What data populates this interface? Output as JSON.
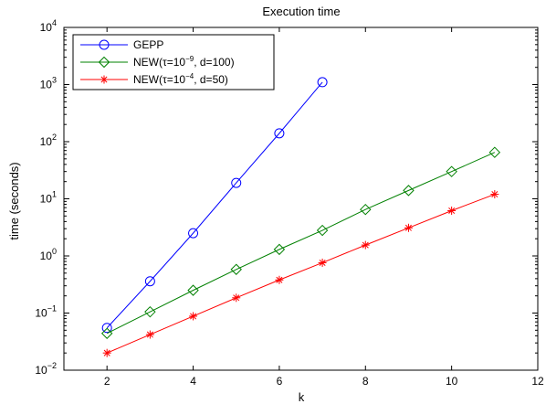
{
  "chart_data": {
    "type": "line",
    "title": "Execution time",
    "xlabel": "k",
    "ylabel": "time (seconds)",
    "xlim": [
      1,
      12
    ],
    "ylim": [
      0.01,
      10000
    ],
    "yscale": "log",
    "grid": false,
    "legend_position": "top-left",
    "x_ticks": [
      2,
      4,
      6,
      8,
      10,
      12
    ],
    "x_tick_labels": [
      "2",
      "4",
      "6",
      "8",
      "10",
      "12"
    ],
    "y_ticks": [
      0.01,
      0.1,
      1,
      10,
      100,
      1000,
      10000
    ],
    "y_tick_labels": [
      {
        "base": "10",
        "exp": "−2"
      },
      {
        "base": "10",
        "exp": "−1"
      },
      {
        "base": "10",
        "exp": "0"
      },
      {
        "base": "10",
        "exp": "1"
      },
      {
        "base": "10",
        "exp": "2"
      },
      {
        "base": "10",
        "exp": "3"
      },
      {
        "base": "10",
        "exp": "4"
      }
    ],
    "series": [
      {
        "name": "GEPP",
        "legend": {
          "pre": "GEPP",
          "parts": []
        },
        "color": "#0000ff",
        "marker": "circle",
        "x": [
          2,
          3,
          4,
          5,
          6,
          7
        ],
        "y": [
          0.055,
          0.36,
          2.5,
          19,
          140,
          1100
        ]
      },
      {
        "name": "NEW(τ=10−9, d=100)",
        "legend": {
          "pre": "NEW(τ=10",
          "exp": "−9",
          "post": ", d=100)"
        },
        "color": "#008000",
        "marker": "diamond",
        "x": [
          2,
          3,
          4,
          5,
          6,
          7,
          8,
          9,
          10,
          11
        ],
        "y": [
          0.044,
          0.105,
          0.25,
          0.58,
          1.3,
          2.8,
          6.5,
          14,
          30,
          65
        ]
      },
      {
        "name": "NEW(τ=10−4, d=50)",
        "legend": {
          "pre": "NEW(τ=10",
          "exp": "−4",
          "post": ", d=50)"
        },
        "color": "#ff0000",
        "marker": "star",
        "x": [
          2,
          3,
          4,
          5,
          6,
          7,
          8,
          9,
          10,
          11
        ],
        "y": [
          0.02,
          0.042,
          0.088,
          0.185,
          0.38,
          0.76,
          1.55,
          3.1,
          6.2,
          12
        ]
      }
    ]
  }
}
